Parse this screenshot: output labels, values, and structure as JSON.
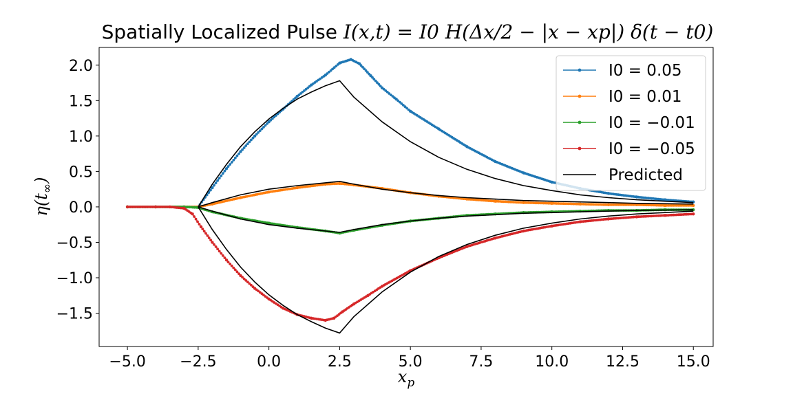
{
  "chart_data": {
    "type": "line",
    "title_prefix": "Spatially Localized Pulse ",
    "title_math": "I(x,t) = I0 H(Δx/2 − |x − xp|) δ(t − t0)",
    "xlabel": "x_p",
    "ylabel": "η(t_∞)",
    "xlim": [
      -6.0,
      15.7
    ],
    "ylim": [
      -1.97,
      2.25
    ],
    "xticks": [
      -5.0,
      -2.5,
      0.0,
      2.5,
      5.0,
      7.5,
      10.0,
      12.5,
      15.0
    ],
    "xtick_labels": [
      "−5.0",
      "−2.5",
      "0.0",
      "2.5",
      "5.0",
      "7.5",
      "10.0",
      "12.5",
      "15.0"
    ],
    "yticks": [
      2.0,
      1.5,
      1.0,
      0.5,
      0.0,
      -0.5,
      -1.0,
      -1.5
    ],
    "ytick_labels": [
      "2.0",
      "1.5",
      "1.0",
      "0.5",
      "0.0",
      "−0.5",
      "−1.0",
      "−1.5"
    ],
    "grid": false,
    "legend_position": "top-right",
    "series": [
      {
        "name": "I0 = 0.05",
        "color": "#1f77b4",
        "marker": "dot",
        "x": [
          -5.0,
          -4.0,
          -3.0,
          -2.5,
          -2.0,
          -1.5,
          -1.0,
          -0.5,
          0.0,
          0.5,
          1.0,
          1.5,
          2.0,
          2.5,
          2.9,
          3.2,
          3.6,
          4.0,
          4.5,
          5.0,
          6.0,
          7.0,
          8.0,
          9.0,
          10.0,
          11.0,
          12.0,
          13.0,
          14.0,
          15.0
        ],
        "values": [
          0.0,
          0.0,
          0.0,
          0.0,
          0.27,
          0.54,
          0.78,
          1.0,
          1.2,
          1.38,
          1.56,
          1.72,
          1.86,
          2.03,
          2.08,
          2.02,
          1.85,
          1.68,
          1.52,
          1.35,
          1.1,
          0.85,
          0.64,
          0.48,
          0.35,
          0.26,
          0.19,
          0.14,
          0.1,
          0.07
        ]
      },
      {
        "name": "I0 = 0.01",
        "color": "#ff7f0e",
        "marker": "dot",
        "x": [
          -5.0,
          -4.0,
          -3.0,
          -2.5,
          -2.0,
          -1.0,
          0.0,
          1.0,
          2.0,
          2.5,
          3.0,
          4.0,
          5.0,
          6.0,
          7.0,
          8.0,
          9.0,
          10.0,
          11.0,
          12.0,
          13.0,
          14.0,
          15.0
        ],
        "values": [
          0.0,
          0.0,
          0.0,
          0.0,
          0.04,
          0.13,
          0.21,
          0.27,
          0.32,
          0.33,
          0.31,
          0.26,
          0.2,
          0.15,
          0.11,
          0.08,
          0.06,
          0.05,
          0.04,
          0.03,
          0.03,
          0.02,
          0.02
        ]
      },
      {
        "name": "I0 = −0.01",
        "color": "#2ca02c",
        "marker": "dot",
        "x": [
          -5.0,
          -4.0,
          -3.0,
          -2.5,
          -2.0,
          -1.0,
          0.0,
          1.0,
          2.0,
          2.5,
          3.0,
          4.0,
          5.0,
          6.0,
          7.0,
          8.0,
          9.0,
          10.0,
          11.0,
          12.0,
          13.0,
          14.0,
          15.0
        ],
        "values": [
          0.0,
          0.0,
          0.0,
          -0.01,
          -0.07,
          -0.16,
          -0.23,
          -0.29,
          -0.34,
          -0.37,
          -0.33,
          -0.26,
          -0.2,
          -0.16,
          -0.12,
          -0.1,
          -0.08,
          -0.07,
          -0.06,
          -0.05,
          -0.05,
          -0.04,
          -0.04
        ]
      },
      {
        "name": "I0 = −0.05",
        "color": "#d62728",
        "marker": "dot",
        "x": [
          -5.0,
          -4.0,
          -3.5,
          -3.0,
          -2.7,
          -2.4,
          -2.0,
          -1.5,
          -1.0,
          -0.5,
          0.0,
          0.5,
          1.0,
          1.5,
          2.0,
          2.3,
          2.6,
          3.0,
          3.5,
          4.0,
          5.0,
          6.0,
          7.0,
          8.0,
          9.0,
          10.0,
          11.0,
          12.0,
          13.0,
          14.0,
          15.0
        ],
        "values": [
          0.0,
          0.0,
          0.0,
          -0.02,
          -0.1,
          -0.28,
          -0.5,
          -0.75,
          -0.97,
          -1.15,
          -1.3,
          -1.43,
          -1.52,
          -1.57,
          -1.6,
          -1.57,
          -1.48,
          -1.37,
          -1.25,
          -1.12,
          -0.9,
          -0.72,
          -0.56,
          -0.44,
          -0.34,
          -0.27,
          -0.21,
          -0.17,
          -0.14,
          -0.12,
          -0.1
        ]
      },
      {
        "name": "Predicted",
        "color": "#000000",
        "marker": "none",
        "curves": [
          {
            "x": [
              -2.5,
              -2.0,
              -1.5,
              -1.0,
              -0.5,
              0.0,
              0.5,
              1.0,
              1.5,
              2.0,
              2.5,
              3.0,
              4.0,
              5.0,
              6.0,
              7.0,
              8.0,
              9.0,
              10.0,
              11.0,
              12.0,
              13.0,
              14.0,
              15.0
            ],
            "values": [
              0.0,
              0.32,
              0.6,
              0.85,
              1.06,
              1.24,
              1.39,
              1.52,
              1.62,
              1.71,
              1.78,
              1.55,
              1.2,
              0.92,
              0.7,
              0.53,
              0.4,
              0.3,
              0.23,
              0.17,
              0.13,
              0.1,
              0.08,
              0.06
            ]
          },
          {
            "x": [
              -2.5,
              -2.0,
              -1.0,
              0.0,
              1.0,
              2.0,
              2.5,
              3.0,
              4.0,
              5.0,
              6.0,
              7.0,
              8.0,
              9.0,
              10.0,
              11.0,
              12.0,
              13.0,
              14.0,
              15.0
            ],
            "values": [
              0.0,
              0.06,
              0.17,
              0.25,
              0.3,
              0.34,
              0.36,
              0.32,
              0.25,
              0.2,
              0.16,
              0.13,
              0.11,
              0.09,
              0.08,
              0.07,
              0.06,
              0.05,
              0.045,
              0.04
            ]
          },
          {
            "x": [
              -2.5,
              -2.0,
              -1.0,
              0.0,
              1.0,
              2.0,
              2.5,
              3.0,
              4.0,
              5.0,
              6.0,
              7.0,
              8.0,
              9.0,
              10.0,
              11.0,
              12.0,
              13.0,
              14.0,
              15.0
            ],
            "values": [
              0.0,
              -0.06,
              -0.17,
              -0.25,
              -0.3,
              -0.34,
              -0.36,
              -0.32,
              -0.25,
              -0.2,
              -0.16,
              -0.13,
              -0.11,
              -0.09,
              -0.08,
              -0.07,
              -0.06,
              -0.05,
              -0.045,
              -0.04
            ]
          },
          {
            "x": [
              -2.5,
              -2.0,
              -1.5,
              -1.0,
              -0.5,
              0.0,
              0.5,
              1.0,
              1.5,
              2.0,
              2.5,
              3.0,
              4.0,
              5.0,
              6.0,
              7.0,
              8.0,
              9.0,
              10.0,
              11.0,
              12.0,
              13.0,
              14.0,
              15.0
            ],
            "values": [
              0.0,
              -0.32,
              -0.6,
              -0.85,
              -1.06,
              -1.24,
              -1.39,
              -1.52,
              -1.62,
              -1.71,
              -1.78,
              -1.55,
              -1.2,
              -0.92,
              -0.7,
              -0.53,
              -0.4,
              -0.3,
              -0.23,
              -0.17,
              -0.13,
              -0.1,
              -0.08,
              -0.06
            ]
          }
        ]
      }
    ],
    "legend": [
      {
        "label": "I0 = 0.05",
        "color": "#1f77b4",
        "marker": true
      },
      {
        "label": "I0 = 0.01",
        "color": "#ff7f0e",
        "marker": true
      },
      {
        "label": "I0 = −0.01",
        "color": "#2ca02c",
        "marker": true
      },
      {
        "label": "I0 = −0.05",
        "color": "#d62728",
        "marker": true
      },
      {
        "label": "Predicted",
        "color": "#000000",
        "marker": false
      }
    ]
  }
}
